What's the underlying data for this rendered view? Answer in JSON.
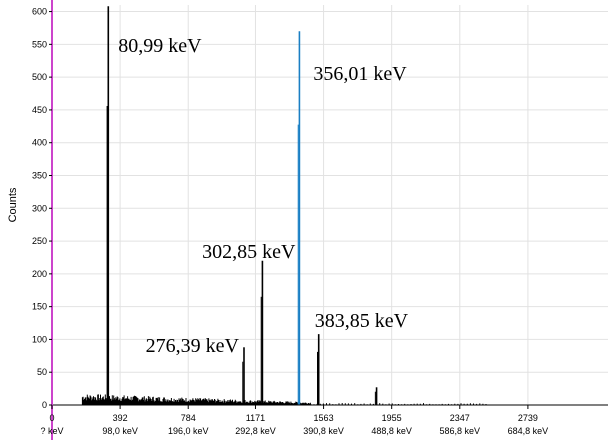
{
  "chart_data": {
    "type": "line",
    "ylabel": "Counts",
    "ylim": [
      0,
      610
    ],
    "xlim": [
      0,
      3200
    ],
    "grid": true,
    "y_ticks": [
      0,
      50,
      100,
      150,
      200,
      250,
      300,
      350,
      400,
      450,
      500,
      550,
      600
    ],
    "x_ticks": [
      {
        "channel": 0,
        "channel_label": "0",
        "energy_label": "? keV"
      },
      {
        "channel": 392,
        "channel_label": "392",
        "energy_label": "98,0 keV"
      },
      {
        "channel": 784,
        "channel_label": "784",
        "energy_label": "196,0 keV"
      },
      {
        "channel": 1171,
        "channel_label": "1171",
        "energy_label": "292,8 keV"
      },
      {
        "channel": 1563,
        "channel_label": "1563",
        "energy_label": "390,8 keV"
      },
      {
        "channel": 1955,
        "channel_label": "1955",
        "energy_label": "488,8 keV"
      },
      {
        "channel": 2347,
        "channel_label": "2347",
        "energy_label": "586,8 keV"
      },
      {
        "channel": 2739,
        "channel_label": "2739",
        "energy_label": "684,8 keV"
      }
    ],
    "peaks": [
      {
        "channel": 324,
        "counts": 608,
        "label": "80,99 keV",
        "color": "#000000"
      },
      {
        "channel": 1105,
        "counts": 88,
        "label": "",
        "color": "#000000"
      },
      {
        "channel": 1211,
        "counts": 220,
        "label": "302,85 keV",
        "color": "#000000"
      },
      {
        "channel": 1424,
        "counts": 570,
        "label": "356,01 keV",
        "color": "#1a7fc4"
      },
      {
        "channel": 1535,
        "counts": 108,
        "label": "383,85 keV",
        "color": "#000000"
      },
      {
        "channel": 1868,
        "counts": 27,
        "label": "",
        "color": "#000000"
      }
    ],
    "annotations": [
      {
        "text": "276,39 keV",
        "channel": 1105
      }
    ],
    "background_continuum": {
      "start_channel": 175,
      "end_channel": 1490,
      "level_start": 12,
      "level_end": 3
    },
    "colors": {
      "spectrum": "#000000",
      "highlight": "#1a7fc4",
      "y_axis": "#cc44cc",
      "grid": "#e2e2e2"
    }
  }
}
